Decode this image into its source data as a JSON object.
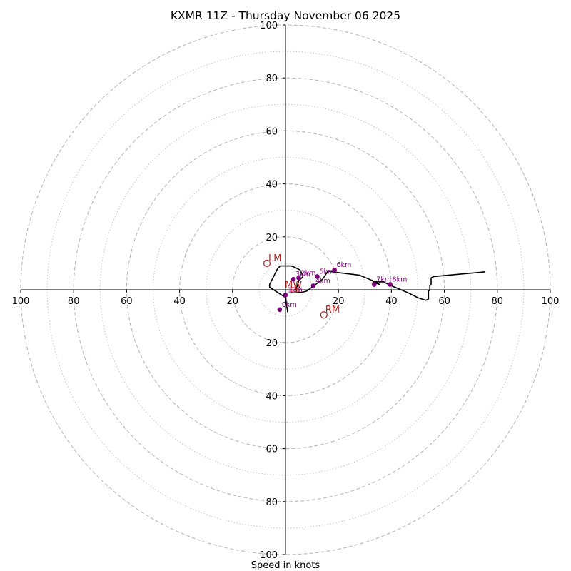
{
  "chart_data": {
    "type": "hodograph",
    "title": "KXMR 11Z - Thursday November 06 2025",
    "xlabel": "Speed in knots",
    "ylabel": "",
    "xlim": [
      -100,
      100
    ],
    "ylim": [
      -100,
      100
    ],
    "dashed_rings": [
      20,
      40,
      60,
      80,
      100
    ],
    "dotted_rings": [
      10,
      30,
      50,
      70,
      90
    ],
    "x_tick_labels": [
      "100",
      "80",
      "60",
      "40",
      "20",
      "20",
      "40",
      "60",
      "80",
      "100"
    ],
    "x_tick_values": [
      -100,
      -80,
      -60,
      -40,
      -20,
      20,
      40,
      60,
      80,
      100
    ],
    "y_tick_labels": [
      "100",
      "80",
      "60",
      "40",
      "20",
      "20",
      "40",
      "60",
      "80",
      "100"
    ],
    "y_tick_values": [
      100,
      80,
      60,
      40,
      20,
      -20,
      -40,
      -60,
      -80,
      -100
    ],
    "hodograph_u": [
      0.7,
      0.8,
      0.6,
      0.3,
      0.1,
      -3,
      -6,
      -6,
      -5,
      -4,
      -3,
      -2,
      -1,
      0,
      0.5,
      1,
      1.5,
      2.2,
      3.5,
      5.5,
      6.5,
      6.5,
      5,
      4,
      4.2,
      4,
      4.5,
      6,
      8,
      10,
      14,
      16,
      20,
      28,
      34,
      35.5,
      33,
      37,
      40,
      46,
      50,
      53,
      54,
      54,
      54.5,
      54.5,
      55,
      55,
      56,
      75.5
    ],
    "hodograph_v": [
      -8.5,
      -8,
      -7,
      -5,
      -3,
      -1,
      1,
      2,
      4,
      6,
      8,
      9,
      9,
      9,
      9,
      9,
      9,
      9,
      8.5,
      7.5,
      5.5,
      4.8,
      3.5,
      0,
      -0.5,
      -1,
      -1,
      -1,
      -0.5,
      1,
      4,
      7,
      6.5,
      5.5,
      3,
      2,
      3,
      3,
      1.5,
      -1,
      -3,
      -4,
      -3.5,
      -0.5,
      0,
      1.5,
      2,
      4.5,
      5,
      6.8
    ],
    "height_markers": [
      {
        "label": "0km",
        "u": -2.2,
        "v": -7.5
      },
      {
        "label": "1km",
        "u": 0,
        "v": -2
      },
      {
        "label": "3km",
        "u": 3,
        "v": 4
      },
      {
        "label": "2km",
        "u": 5,
        "v": 4.5
      },
      {
        "label": "4km",
        "u": 10.5,
        "v": 1.5
      },
      {
        "label": "5km",
        "u": 12,
        "v": 5
      },
      {
        "label": "6km",
        "u": 18.5,
        "v": 7.5
      },
      {
        "label": "7km",
        "u": 33.5,
        "v": 2
      },
      {
        "label": "8km",
        "u": 39.5,
        "v": 2
      }
    ],
    "storm_motion": [
      {
        "label": "LM",
        "u": -7,
        "v": 10
      },
      {
        "label": "RM",
        "u": 14.5,
        "v": -9.5
      },
      {
        "label": "MW",
        "u": 3.5,
        "v": 0
      }
    ],
    "annotations": [
      {
        "label": "ES",
        "u": 1.8,
        "v": 0
      }
    ],
    "grid": true
  }
}
